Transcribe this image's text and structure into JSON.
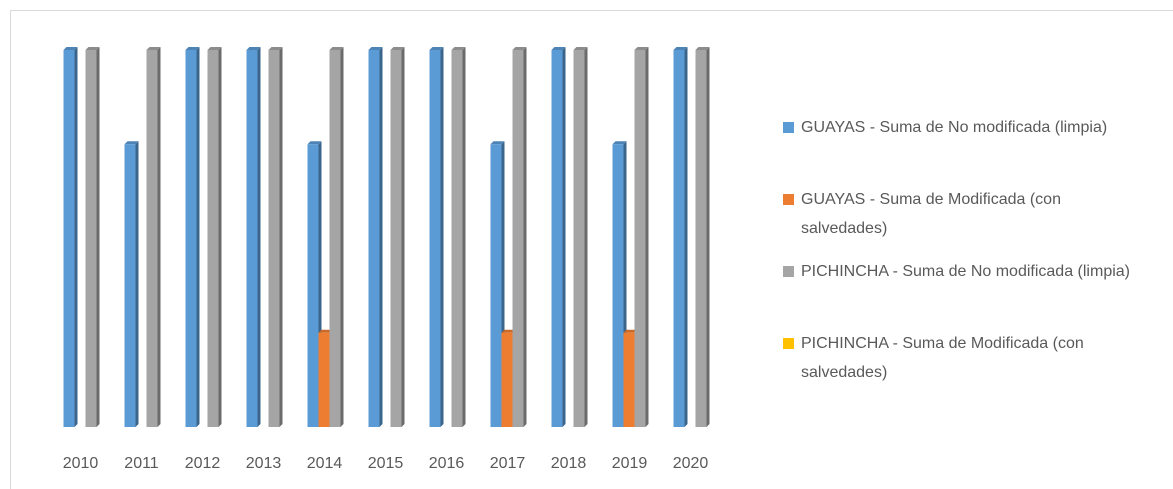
{
  "chart_data": {
    "type": "bar",
    "categories": [
      "2010",
      "2011",
      "2012",
      "2013",
      "2014",
      "2015",
      "2016",
      "2017",
      "2018",
      "2019",
      "2020"
    ],
    "series": [
      {
        "name": "GUAYAS - Suma de No modificada (limpia)",
        "color": "#5b9bd5",
        "values": [
          4,
          3,
          4,
          4,
          3,
          4,
          4,
          3,
          4,
          3,
          4
        ]
      },
      {
        "name": "GUAYAS - Suma de Modificada (con salvedades)",
        "color": "#ed7d31",
        "values": [
          0,
          0,
          0,
          0,
          1,
          0,
          0,
          1,
          0,
          1,
          0
        ]
      },
      {
        "name": "PICHINCHA - Suma de No modificada (limpia)",
        "color": "#a5a5a5",
        "values": [
          4,
          4,
          4,
          4,
          4,
          4,
          4,
          4,
          4,
          4,
          4
        ]
      },
      {
        "name": "PICHINCHA - Suma de Modificada (con salvedades)",
        "color": "#ffc000",
        "values": [
          0,
          0,
          0,
          0,
          0,
          0,
          0,
          0,
          0,
          0,
          0
        ]
      }
    ],
    "ylim": [
      0,
      4
    ],
    "legend": "right"
  }
}
